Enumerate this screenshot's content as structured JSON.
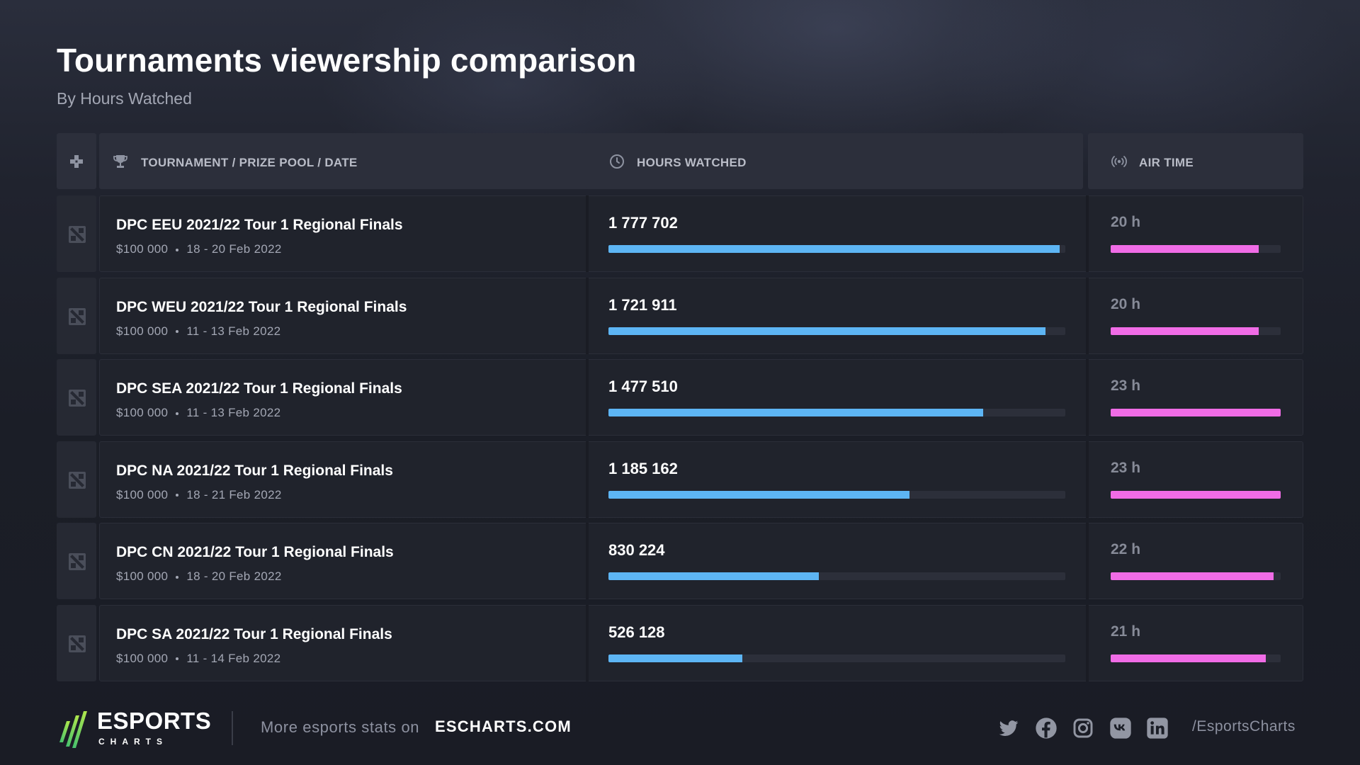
{
  "header": {
    "title": "Tournaments viewership comparison",
    "subtitle": "By Hours Watched"
  },
  "table": {
    "columns": {
      "tournament": "TOURNAMENT / PRIZE POOL / DATE",
      "hours": "HOURS WATCHED",
      "airtime": "AIR TIME"
    },
    "rows": [
      {
        "name": "DPC EEU 2021/22 Tour 1 Regional Finals",
        "prize": "$100 000",
        "date": "18 - 20 Feb 2022",
        "hours_label": "1 777 702",
        "air_label": "20 h"
      },
      {
        "name": "DPC WEU 2021/22 Tour 1 Regional Finals",
        "prize": "$100 000",
        "date": "11 - 13 Feb 2022",
        "hours_label": "1 721 911",
        "air_label": "20 h"
      },
      {
        "name": "DPC SEA 2021/22 Tour 1 Regional Finals",
        "prize": "$100 000",
        "date": "11 - 13 Feb 2022",
        "hours_label": "1 477 510",
        "air_label": "23 h"
      },
      {
        "name": "DPC NA 2021/22 Tour 1 Regional Finals",
        "prize": "$100 000",
        "date": "18 - 21 Feb 2022",
        "hours_label": "1 185 162",
        "air_label": "23 h"
      },
      {
        "name": "DPC CN 2021/22 Tour 1 Regional Finals",
        "prize": "$100 000",
        "date": "18 - 20 Feb 2022",
        "hours_label": "830 224",
        "air_label": "22 h"
      },
      {
        "name": "DPC SA 2021/22 Tour 1 Regional Finals",
        "prize": "$100 000",
        "date": "11 - 14 Feb 2022",
        "hours_label": "526 128",
        "air_label": "21 h"
      }
    ]
  },
  "chart_data": {
    "type": "bar",
    "title": "Tournaments viewership comparison",
    "subtitle": "By Hours Watched",
    "categories": [
      "DPC EEU 2021/22 Tour 1 Regional Finals",
      "DPC WEU 2021/22 Tour 1 Regional Finals",
      "DPC SEA 2021/22 Tour 1 Regional Finals",
      "DPC NA 2021/22 Tour 1 Regional Finals",
      "DPC CN 2021/22 Tour 1 Regional Finals",
      "DPC SA 2021/22 Tour 1 Regional Finals"
    ],
    "series": [
      {
        "name": "HOURS WATCHED",
        "values": [
          1777702,
          1721911,
          1477510,
          1185162,
          830224,
          526128
        ],
        "color": "#5db5f4"
      },
      {
        "name": "AIR TIME",
        "values": [
          20,
          20,
          23,
          23,
          22,
          21
        ],
        "color": "#f06ce6"
      }
    ],
    "orientation": "horizontal"
  },
  "footer": {
    "brand": "ESPORTS",
    "brand_sub": "CHARTS",
    "more_text": "More esports stats on",
    "site": "ESCHARTS.COM",
    "handle": "/EsportsCharts",
    "socials": [
      "twitter-icon",
      "facebook-icon",
      "instagram-icon",
      "vk-icon",
      "linkedin-icon"
    ]
  },
  "colors": {
    "accent_hours": "#5db5f4",
    "accent_air": "#f06ce6",
    "brand_green": "#7ed957"
  }
}
